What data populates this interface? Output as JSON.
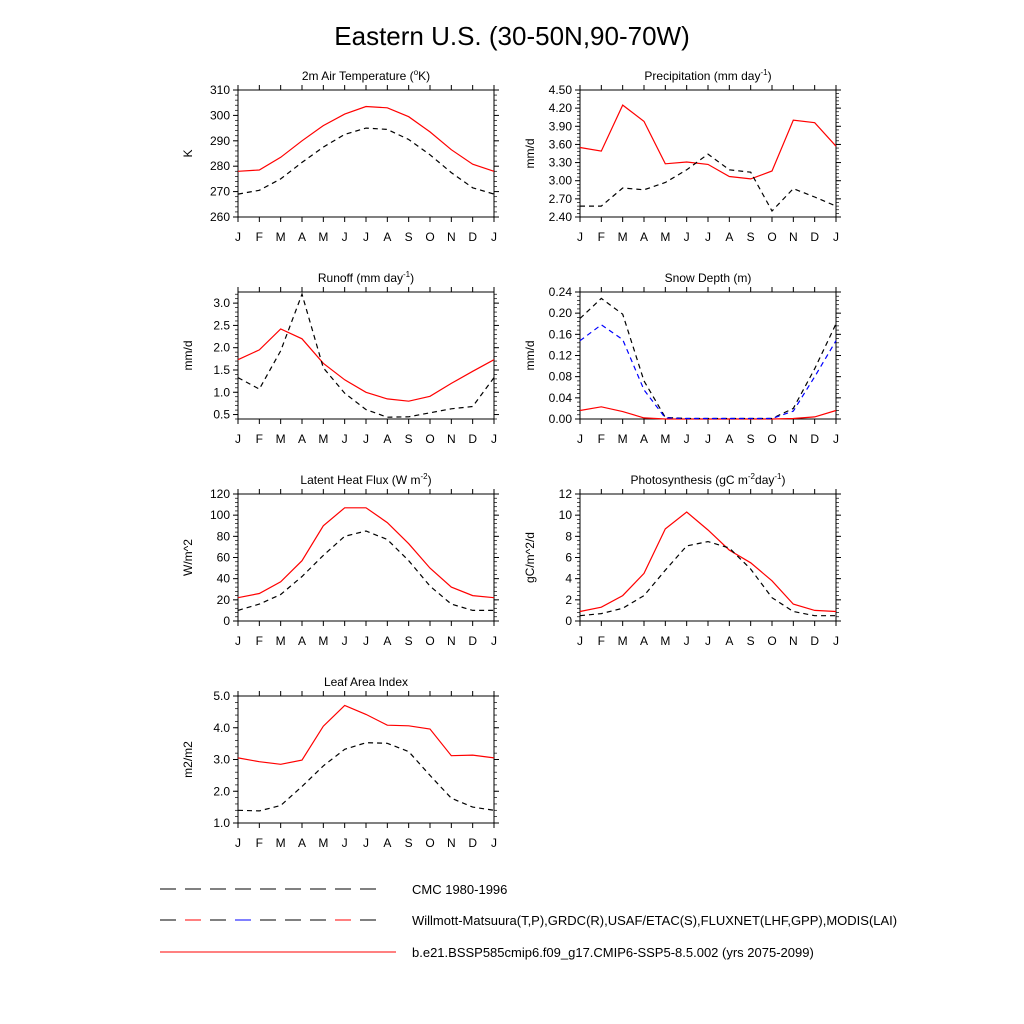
{
  "figure": {
    "title": "Eastern U.S. (30-50N,90-70W)"
  },
  "months": [
    "J",
    "F",
    "M",
    "A",
    "M",
    "J",
    "J",
    "A",
    "S",
    "O",
    "N",
    "D",
    "J"
  ],
  "chart_data": [
    {
      "id": "air-temp",
      "type": "line",
      "title": "2m Air Temperature (°K)",
      "title_parts": [
        [
          "2m Air Temperature (",
          ""
        ],
        [
          "o",
          "sup"
        ],
        [
          "K)",
          ""
        ]
      ],
      "ylabel": "K",
      "ylim": [
        260,
        310
      ],
      "yticks": [
        "260",
        "270",
        "280",
        "290",
        "300",
        "310"
      ],
      "x": [
        "J",
        "F",
        "M",
        "A",
        "M",
        "J",
        "J",
        "A",
        "S",
        "O",
        "N",
        "D",
        "J"
      ],
      "series": [
        {
          "style": "model",
          "color": "#ff0000",
          "dash": "",
          "values": [
            278,
            278.5,
            283.5,
            290,
            296,
            300.5,
            303.5,
            303,
            299.5,
            293.5,
            286.5,
            280.8,
            278
          ]
        },
        {
          "style": "obs-cmc",
          "color": "#000000",
          "dash": "5,4",
          "values": [
            269,
            270.5,
            275,
            281.5,
            287.5,
            292.5,
            295,
            294.5,
            290.5,
            284.5,
            277.5,
            271.5,
            269
          ]
        }
      ]
    },
    {
      "id": "precip",
      "type": "line",
      "title": "Precipitation (mm day-1)",
      "title_parts": [
        [
          "Precipitation (mm day",
          ""
        ],
        [
          "-1",
          "sup"
        ],
        [
          ")",
          ""
        ]
      ],
      "ylabel": "mm/d",
      "ylim": [
        2.4,
        4.5
      ],
      "yticks": [
        "2.40",
        "2.70",
        "3.00",
        "3.30",
        "3.60",
        "3.90",
        "4.20",
        "4.50"
      ],
      "x": [
        "J",
        "F",
        "M",
        "A",
        "M",
        "J",
        "J",
        "A",
        "S",
        "O",
        "N",
        "D",
        "J"
      ],
      "series": [
        {
          "style": "model",
          "color": "#ff0000",
          "dash": "",
          "values": [
            3.55,
            3.49,
            4.25,
            3.98,
            3.28,
            3.31,
            3.27,
            3.07,
            3.03,
            3.16,
            4.0,
            3.96,
            3.57
          ]
        },
        {
          "style": "obs-cmc",
          "color": "#000000",
          "dash": "5,4",
          "values": [
            2.58,
            2.58,
            2.88,
            2.85,
            2.97,
            3.18,
            3.44,
            3.18,
            3.14,
            2.5,
            2.87,
            2.73,
            2.58
          ]
        }
      ]
    },
    {
      "id": "runoff",
      "type": "line",
      "title": "Runoff (mm day-1)",
      "title_parts": [
        [
          "Runoff (mm day",
          ""
        ],
        [
          "-1",
          "sup"
        ],
        [
          ")",
          ""
        ]
      ],
      "ylabel": "mm/d",
      "ylim": [
        0.4,
        3.25
      ],
      "yticks": [
        "0.5",
        "1.0",
        "1.5",
        "2.0",
        "2.5",
        "3.0"
      ],
      "x": [
        "J",
        "F",
        "M",
        "A",
        "M",
        "J",
        "J",
        "A",
        "S",
        "O",
        "N",
        "D",
        "J"
      ],
      "series": [
        {
          "style": "model",
          "color": "#ff0000",
          "dash": "",
          "values": [
            1.73,
            1.95,
            2.42,
            2.2,
            1.65,
            1.28,
            1.0,
            0.85,
            0.8,
            0.91,
            1.2,
            1.47,
            1.73
          ]
        },
        {
          "style": "obs-cmc",
          "color": "#000000",
          "dash": "5,4",
          "values": [
            1.33,
            1.07,
            1.93,
            3.2,
            1.55,
            0.98,
            0.61,
            0.44,
            0.45,
            0.54,
            0.63,
            0.68,
            1.33
          ]
        }
      ]
    },
    {
      "id": "snow-depth",
      "type": "line",
      "title": "Snow Depth (m)",
      "title_parts": [
        [
          "Snow Depth (m)",
          ""
        ]
      ],
      "ylabel": "mm/d",
      "ylim": [
        0,
        0.24
      ],
      "yticks": [
        "0.00",
        "0.04",
        "0.08",
        "0.12",
        "0.16",
        "0.20",
        "0.24"
      ],
      "x": [
        "J",
        "F",
        "M",
        "A",
        "M",
        "J",
        "J",
        "A",
        "S",
        "O",
        "N",
        "D",
        "J"
      ],
      "series": [
        {
          "style": "model",
          "color": "#ff0000",
          "dash": "",
          "values": [
            0.016,
            0.023,
            0.014,
            0.002,
            0,
            0,
            0,
            0,
            0,
            0,
            0.001,
            0.004,
            0.016
          ]
        },
        {
          "style": "obs-cmc",
          "color": "#000000",
          "dash": "5,4",
          "values": [
            0.19,
            0.228,
            0.198,
            0.072,
            0.003,
            0.001,
            0.001,
            0.001,
            0.001,
            0.001,
            0.02,
            0.095,
            0.18
          ]
        },
        {
          "style": "obs-usaf",
          "color": "#0000ff",
          "dash": "5,4",
          "values": [
            0.148,
            0.178,
            0.15,
            0.055,
            0.002,
            0.001,
            0.001,
            0.001,
            0.001,
            0.001,
            0.015,
            0.08,
            0.148
          ]
        }
      ]
    },
    {
      "id": "latent-heat",
      "type": "line",
      "title": "Latent Heat Flux (W m-2)",
      "title_parts": [
        [
          "Latent Heat Flux (W m",
          ""
        ],
        [
          "-2",
          "sup"
        ],
        [
          ")",
          ""
        ]
      ],
      "ylabel": "W/m^2",
      "ylim": [
        0,
        120
      ],
      "yticks": [
        "0",
        "20",
        "40",
        "60",
        "80",
        "100",
        "120"
      ],
      "x": [
        "J",
        "F",
        "M",
        "A",
        "M",
        "J",
        "J",
        "A",
        "S",
        "O",
        "N",
        "D",
        "J"
      ],
      "series": [
        {
          "style": "model",
          "color": "#ff0000",
          "dash": "",
          "values": [
            22,
            26,
            37,
            57,
            90,
            107,
            107,
            93,
            73,
            50,
            32,
            24,
            22
          ]
        },
        {
          "style": "obs-cmc",
          "color": "#000000",
          "dash": "5,4",
          "values": [
            10,
            16,
            25,
            42,
            62,
            80,
            85,
            77,
            57,
            33,
            16,
            10,
            10
          ]
        }
      ]
    },
    {
      "id": "photosynthesis",
      "type": "line",
      "title": "Photosynthesis (gC m-2day-1)",
      "title_parts": [
        [
          "Photosynthesis (gC m",
          ""
        ],
        [
          "-2",
          "sup"
        ],
        [
          "day",
          ""
        ],
        [
          "-1",
          "sup"
        ],
        [
          ")",
          ""
        ]
      ],
      "ylabel": "gC/m^2/d",
      "ylim": [
        0,
        12
      ],
      "yticks": [
        "0",
        "2",
        "4",
        "6",
        "8",
        "10",
        "12"
      ],
      "x": [
        "J",
        "F",
        "M",
        "A",
        "M",
        "J",
        "J",
        "A",
        "S",
        "O",
        "N",
        "D",
        "J"
      ],
      "series": [
        {
          "style": "model",
          "color": "#ff0000",
          "dash": "",
          "values": [
            0.9,
            1.3,
            2.4,
            4.5,
            8.7,
            10.3,
            8.6,
            6.7,
            5.5,
            3.8,
            1.6,
            1.0,
            0.9
          ]
        },
        {
          "style": "obs-cmc",
          "color": "#000000",
          "dash": "5,4",
          "values": [
            0.5,
            0.7,
            1.2,
            2.4,
            4.8,
            7.1,
            7.5,
            6.9,
            4.9,
            2.2,
            0.9,
            0.5,
            0.5
          ]
        }
      ]
    },
    {
      "id": "lai",
      "type": "line",
      "title": "Leaf Area Index",
      "title_parts": [
        [
          "Leaf Area Index",
          ""
        ]
      ],
      "ylabel": "m2/m2",
      "ylim": [
        1.0,
        5.0
      ],
      "yticks": [
        "1.0",
        "2.0",
        "3.0",
        "4.0",
        "5.0"
      ],
      "x": [
        "J",
        "F",
        "M",
        "A",
        "M",
        "J",
        "J",
        "A",
        "S",
        "O",
        "N",
        "D",
        "J"
      ],
      "series": [
        {
          "style": "model",
          "color": "#ff0000",
          "dash": "",
          "values": [
            3.05,
            2.93,
            2.85,
            2.98,
            4.05,
            4.7,
            4.42,
            4.08,
            4.06,
            3.96,
            3.12,
            3.14,
            3.05
          ]
        },
        {
          "style": "obs-cmc",
          "color": "#000000",
          "dash": "5,4",
          "values": [
            1.4,
            1.38,
            1.55,
            2.15,
            2.8,
            3.32,
            3.53,
            3.51,
            3.25,
            2.5,
            1.78,
            1.5,
            1.4
          ]
        }
      ]
    }
  ],
  "legend": [
    {
      "label": "CMC 1980-1996",
      "color": "#000000",
      "dash_colors": [
        "#000000"
      ]
    },
    {
      "label": "Willmott-Matsuura(T,P),GRDC(R),USAF/ETAC(S),FLUXNET(LHF,GPP),MODIS(LAI)",
      "color": "#000000",
      "dash_colors": [
        "#000000",
        "#ff0000",
        "#000000",
        "#0000ff",
        "#000000",
        "#000000"
      ]
    },
    {
      "label": "b.e21.BSSP585cmip6.f09_g17.CMIP6-SSP5-8.5.002 (yrs 2075-2099)",
      "color": "#ff0000",
      "dash_colors": [
        "#ff0000"
      ]
    }
  ]
}
